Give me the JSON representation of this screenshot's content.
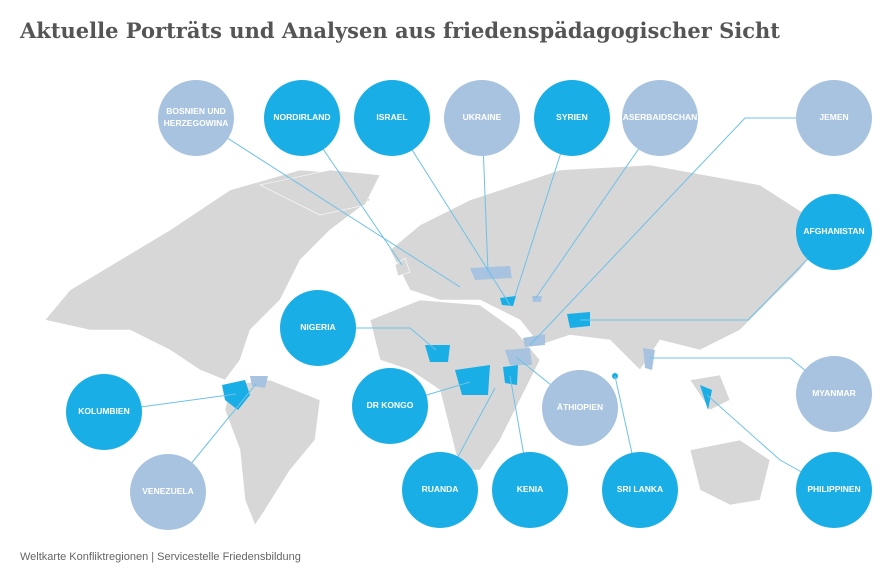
{
  "header": {
    "title": "Aktuelle Porträts und Analysen aus friedenspädagogischer Sicht"
  },
  "nodes": [
    {
      "label": "BOSNIEN UND HERZEGOWINA",
      "color": "#a8c3e0"
    },
    {
      "label": "NORDIRLAND",
      "color": "#1aaee6"
    },
    {
      "label": "ISRAEL",
      "color": "#1aaee6"
    },
    {
      "label": "UKRAINE",
      "color": "#a8c3e0"
    },
    {
      "label": "SYRIEN",
      "color": "#1aaee6"
    },
    {
      "label": "ASERBAIDSCHAN",
      "color": "#a8c3e0"
    },
    {
      "label": "JEMEN",
      "color": "#a8c3e0"
    },
    {
      "label": "AFGHANISTAN",
      "color": "#1aaee6"
    },
    {
      "label": "NIGERIA",
      "color": "#1aaee6"
    },
    {
      "label": "KOLUMBIEN",
      "color": "#1aaee6"
    },
    {
      "label": "DR KONGO",
      "color": "#1aaee6"
    },
    {
      "label": "ÄTHIOPIEN",
      "color": "#a8c3e0"
    },
    {
      "label": "MYANMAR",
      "color": "#a8c3e0"
    },
    {
      "label": "VENEZUELA",
      "color": "#a8c3e0"
    },
    {
      "label": "RUANDA",
      "color": "#1aaee6"
    },
    {
      "label": "KENIA",
      "color": "#1aaee6"
    },
    {
      "label": "SRI LANKA",
      "color": "#1aaee6"
    },
    {
      "label": "PHILIPPINEN",
      "color": "#1aaee6"
    }
  ],
  "caption": "Weltkarte Konfliktregionen | Servicestelle Friedensbildung"
}
